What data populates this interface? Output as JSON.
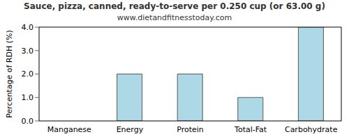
{
  "chart_data": {
    "type": "bar",
    "title": "Sauce, pizza, canned, ready-to-serve per 0.250 cup (or 63.00 g)",
    "subtitle": "www.dietandfitnesstoday.com",
    "y_label": "Percentage of RDH (%)",
    "categories": [
      "Manganese",
      "Energy",
      "Protein",
      "Total-Fat",
      "Carbohydrate"
    ],
    "values": [
      0,
      2,
      2,
      1,
      4
    ],
    "color": "#add8e6",
    "ylim": [
      0,
      4
    ],
    "yticks": [
      {
        "value": 0,
        "label": "0.0"
      },
      {
        "value": 1,
        "label": "1.0"
      },
      {
        "value": 2,
        "label": "2.0"
      },
      {
        "value": 3,
        "label": "3.0"
      },
      {
        "value": 4,
        "label": "4.0"
      }
    ],
    "grid": false
  }
}
